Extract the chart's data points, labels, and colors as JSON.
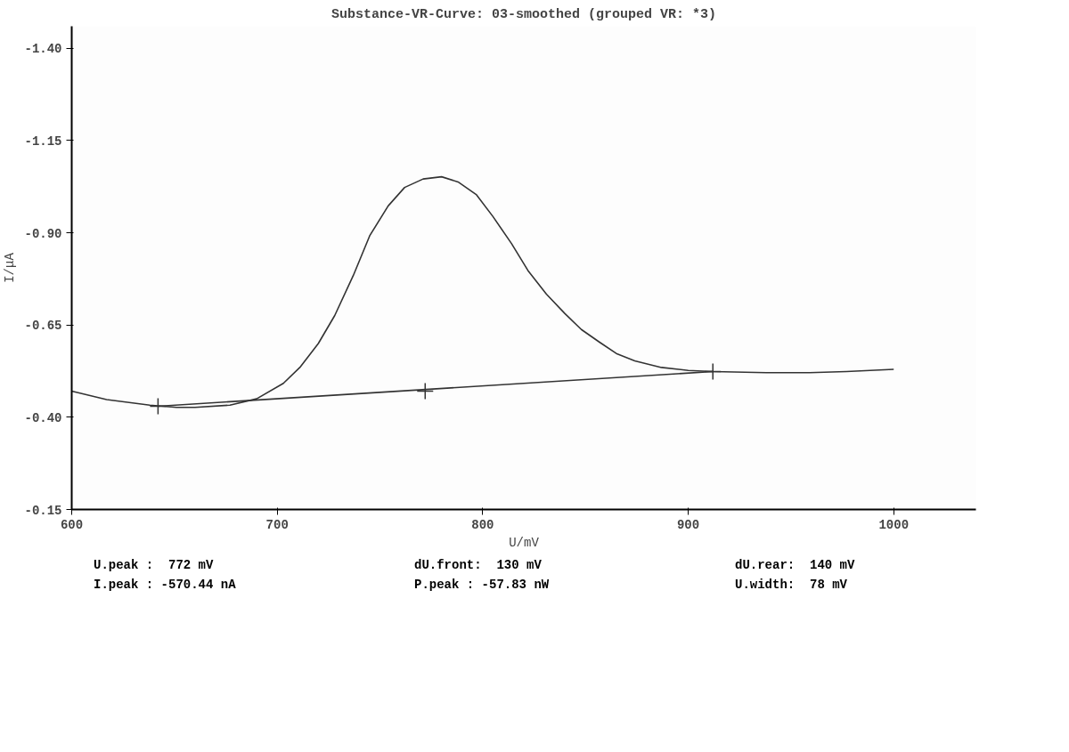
{
  "chart_data": {
    "type": "line",
    "title": "Substance-VR-Curve: 03-smoothed (grouped VR: *3)",
    "xlabel": "U/mV",
    "ylabel": "I/μA",
    "xlim": [
      600,
      1040
    ],
    "ylim": [
      -0.15,
      -1.46
    ],
    "xticks": [
      600,
      700,
      800,
      900,
      1000
    ],
    "yticks": [
      {
        "value": -1.4,
        "label": "-1.40"
      },
      {
        "value": -1.15,
        "label": "-1.15"
      },
      {
        "value": -0.9,
        "label": "-0.90"
      },
      {
        "value": -0.65,
        "label": "-0.65"
      },
      {
        "value": -0.4,
        "label": "-0.40"
      },
      {
        "value": -0.15,
        "label": "-0.15"
      }
    ],
    "series": [
      {
        "color": "#333333",
        "marker": "none",
        "x": [
          600,
          617,
          638,
          651,
          660,
          677,
          690,
          703,
          711,
          720,
          728,
          737,
          745,
          754,
          762,
          771,
          780,
          788,
          797,
          805,
          814,
          822,
          831,
          840,
          848,
          857,
          865,
          874,
          887,
          900,
          912,
          938,
          959,
          977,
          1000
        ],
        "values": [
          -0.471,
          -0.448,
          -0.433,
          -0.427,
          -0.427,
          -0.433,
          -0.45,
          -0.492,
          -0.535,
          -0.6,
          -0.676,
          -0.784,
          -0.892,
          -0.973,
          -1.023,
          -1.046,
          -1.052,
          -1.038,
          -1.003,
          -0.944,
          -0.871,
          -0.798,
          -0.734,
          -0.681,
          -0.638,
          -0.603,
          -0.573,
          -0.553,
          -0.535,
          -0.527,
          -0.524,
          -0.521,
          -0.521,
          -0.524,
          -0.53
        ]
      },
      {
        "color": "#333333",
        "marker": "none",
        "x": [
          642,
          912
        ],
        "values": [
          -0.43,
          -0.524
        ]
      },
      {
        "type": "scatter",
        "color": "#333333",
        "marker": "cross",
        "x": [
          642,
          772,
          912
        ],
        "values": [
          -0.43,
          -0.471,
          -0.524
        ]
      }
    ],
    "annotations": [
      "U.peak :  772 mV",
      "dU.front:  130 mV",
      "dU.rear:  140 mV",
      "I.peak : -570.44 nA",
      "P.peak : -57.83 nW",
      "U.width:  78 mV"
    ]
  }
}
